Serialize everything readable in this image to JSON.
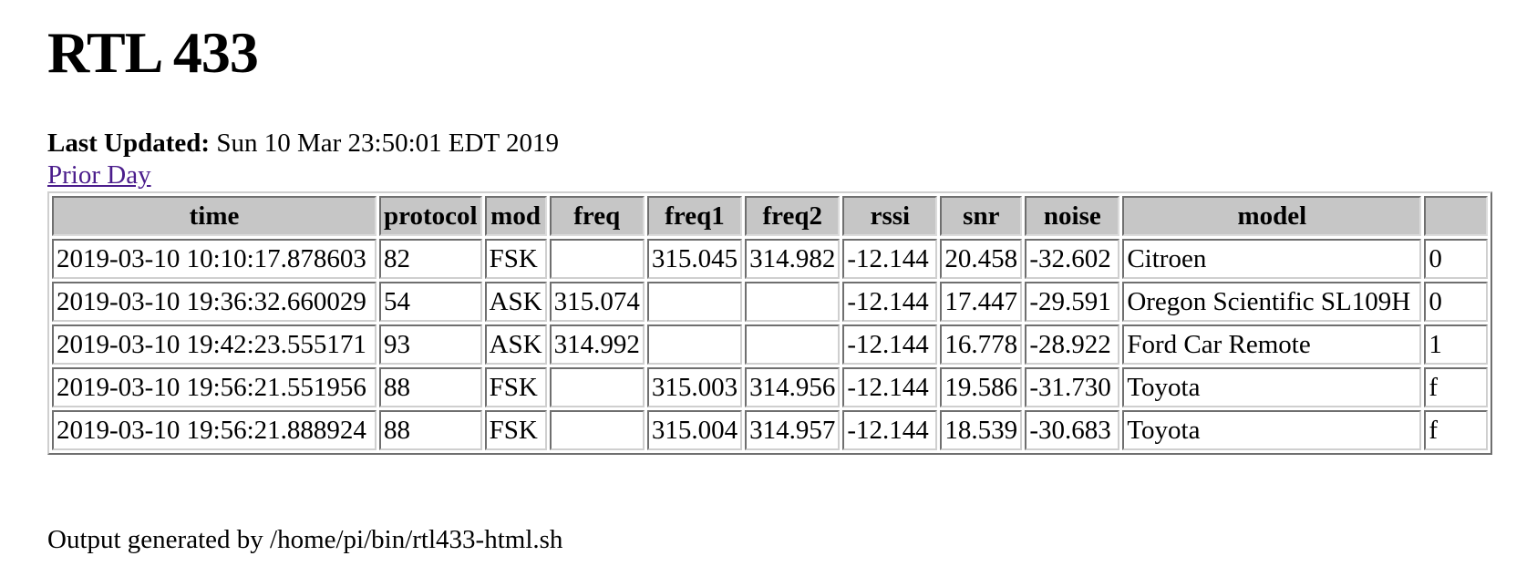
{
  "page": {
    "title": "RTL 433",
    "last_updated_label": "Last Updated:",
    "last_updated_value": " Sun 10 Mar 23:50:01 EDT 2019",
    "prior_day_link": "Prior Day",
    "footer": "Output generated by /home/pi/bin/rtl433-html.sh"
  },
  "table": {
    "columns": [
      "time",
      "protocol",
      "mod",
      "freq",
      "freq1",
      "freq2",
      "rssi",
      "snr",
      "noise",
      "model",
      ""
    ],
    "rows": [
      [
        "2019-03-10 10:10:17.878603",
        "82",
        "FSK",
        "",
        "315.045",
        "314.982",
        "-12.144",
        "20.458",
        "-32.602",
        "Citroen",
        "0"
      ],
      [
        "2019-03-10 19:36:32.660029",
        "54",
        "ASK",
        "315.074",
        "",
        "",
        "-12.144",
        "17.447",
        "-29.591",
        "Oregon Scientific SL109H",
        "0"
      ],
      [
        "2019-03-10 19:42:23.555171",
        "93",
        "ASK",
        "314.992",
        "",
        "",
        "-12.144",
        "16.778",
        "-28.922",
        "Ford Car Remote",
        "1"
      ],
      [
        "2019-03-10 19:56:21.551956",
        "88",
        "FSK",
        "",
        "315.003",
        "314.956",
        "-12.144",
        "19.586",
        "-31.730",
        "Toyota",
        "f"
      ],
      [
        "2019-03-10 19:56:21.888924",
        "88",
        "FSK",
        "",
        "315.004",
        "314.957",
        "-12.144",
        "18.539",
        "-30.683",
        "Toyota",
        "f"
      ]
    ]
  },
  "colors": {
    "link": "#4b1d8c",
    "header_bg": "#c6c6c6"
  }
}
